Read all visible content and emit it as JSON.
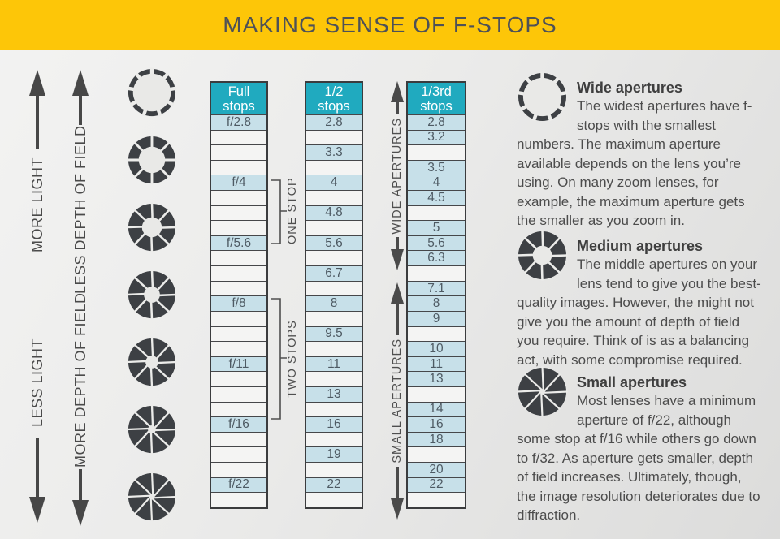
{
  "header": {
    "title": "MAKING SENSE OF F-STOPS"
  },
  "colors": {
    "banner_yellow": "#FDC608",
    "table_header_teal": "#20AABF",
    "value_row_blue": "#C7E0E9",
    "empty_row": "#F4F4F3",
    "line_dark": "#3B3C3E",
    "text_gray": "#4C4C4C"
  },
  "left_arrows": {
    "light": {
      "up_label": "MORE LIGHT",
      "down_label": "LESS LIGHT"
    },
    "depth_of_field": {
      "up_label": "LESS DEPTH OF FIELD",
      "down_label": "MORE DEPTH OF FIELD"
    }
  },
  "aperture_icons": [
    {
      "name": "aperture-widest",
      "open": 0.8,
      "blades": 9,
      "swirl": 0,
      "gap": 4.5
    },
    {
      "name": "aperture-wide",
      "open": 0.56,
      "blades": 8,
      "swirl": 0,
      "gap": 3
    },
    {
      "name": "aperture-medium-wide",
      "open": 0.42,
      "blades": 8,
      "swirl": 8,
      "gap": 2.6
    },
    {
      "name": "aperture-medium",
      "open": 0.34,
      "blades": 8,
      "swirl": 14,
      "gap": 2.6
    },
    {
      "name": "aperture-medium-small",
      "open": 0.27,
      "blades": 8,
      "swirl": 20,
      "gap": 2.4
    },
    {
      "name": "aperture-small",
      "open": 0.17,
      "blades": 8,
      "swirl": 30,
      "gap": 2.4
    },
    {
      "name": "aperture-smallest",
      "open": 0.1,
      "blades": 8,
      "swirl": 42,
      "gap": 2.2
    }
  ],
  "tables": {
    "full": {
      "header_line1": "Full",
      "header_line2": "stops",
      "rows": [
        "f/2.8",
        "",
        "",
        "",
        "f/4",
        "",
        "",
        "",
        "f/5.6",
        "",
        "",
        "",
        "f/8",
        "",
        "",
        "",
        "f/11",
        "",
        "",
        "",
        "f/16",
        "",
        "",
        "",
        "f/22",
        ""
      ]
    },
    "half": {
      "header_line1": "1/2",
      "header_line2": "stops",
      "rows": [
        "2.8",
        "",
        "3.3",
        "",
        "4",
        "",
        "4.8",
        "",
        "5.6",
        "",
        "6.7",
        "",
        "8",
        "",
        "9.5",
        "",
        "11",
        "",
        "13",
        "",
        "16",
        "",
        "19",
        "",
        "22",
        ""
      ]
    },
    "third": {
      "header_line1": "1/3rd",
      "header_line2": "stops",
      "rows": [
        "2.8",
        "3.2",
        "",
        "3.5",
        "4",
        "4.5",
        "",
        "5",
        "5.6",
        "6.3",
        "",
        "7.1",
        "8",
        "9",
        "",
        "10",
        "11",
        "13",
        "",
        "14",
        "16",
        "18",
        "",
        "20",
        "22",
        ""
      ]
    }
  },
  "brackets": [
    {
      "label": "ONE STOP"
    },
    {
      "label": "TWO STOPS"
    }
  ],
  "range_arrows": [
    {
      "label": "WIDE APERTURES"
    },
    {
      "label": "SMALL APERTURES"
    }
  ],
  "info_blocks": [
    {
      "title": "Wide apertures",
      "body": "The widest apertures have f-stops with the smallest numbers. The maximum aperture available depends on the lens you’re using. On many zoom lenses, for example, the maximum aperture gets the smaller as you zoom in.",
      "icon": {
        "name": "wide-aperture-icon",
        "open": 0.8,
        "blades": 9,
        "swirl": 0,
        "gap": 4.5
      }
    },
    {
      "title": "Medium apertures",
      "body": "The middle apertures on your lens tend to give you the best-quality images. However, the might not give you the amount of depth of field you require. Think of is as a balancing act, with some compromise required.",
      "icon": {
        "name": "medium-aperture-icon",
        "open": 0.4,
        "blades": 8,
        "swirl": 8,
        "gap": 2.6
      }
    },
    {
      "title": "Small apertures",
      "body": "Most lenses have a minimum aperture of f/22, although some stop at f/16 while others go down to f/32. As aperture gets smaller, depth of field increases. Ultimately, though, the image resolution deteriorates due to diffraction.",
      "icon": {
        "name": "small-aperture-icon",
        "open": 0.1,
        "blades": 8,
        "swirl": 42,
        "gap": 2.2
      }
    }
  ]
}
